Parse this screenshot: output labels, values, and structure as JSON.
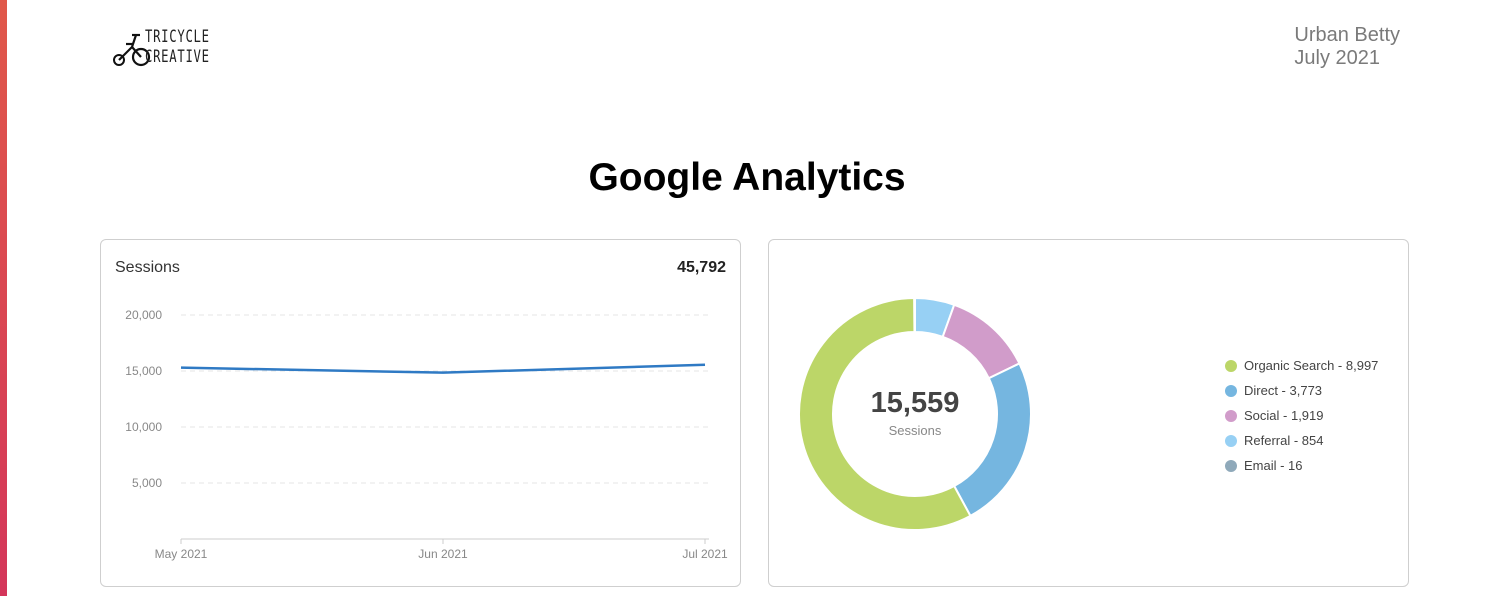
{
  "header": {
    "logo_line1": "TRICYCLE",
    "logo_line2": "CREATIVE",
    "client_name": "Urban Betty",
    "report_period": "July 2021"
  },
  "page_title": "Google Analytics",
  "sessions_card": {
    "title": "Sessions",
    "total": "45,792"
  },
  "traffic_card": {
    "center_value": "15,559",
    "center_label": "Sessions"
  },
  "chart_data": [
    {
      "type": "line",
      "title": "Sessions",
      "x": [
        "May 2021",
        "Jun 2021",
        "Jul 2021"
      ],
      "y_ticks": [
        "5,000",
        "10,000",
        "15,000",
        "20,000"
      ],
      "ylim": [
        0,
        20000
      ],
      "grid": true,
      "series": [
        {
          "values": [
            15300,
            14850,
            15560
          ],
          "color": "#2f7ac4"
        }
      ]
    },
    {
      "type": "pie",
      "donut": true,
      "legend_position": "right",
      "slices": [
        {
          "label": "Organic Search - 8,997",
          "name": "Organic Search",
          "value": 8997,
          "color": "#bcd668"
        },
        {
          "label": "Direct - 3,773",
          "name": "Direct",
          "value": 3773,
          "color": "#75b6e0"
        },
        {
          "label": "Social - 1,919",
          "name": "Social",
          "value": 1919,
          "color": "#d19cca"
        },
        {
          "label": "Referral - 854",
          "name": "Referral",
          "value": 854,
          "color": "#97d0f4"
        },
        {
          "label": "Email - 16",
          "name": "Email",
          "value": 16,
          "color": "#8fa9ba"
        }
      ]
    }
  ]
}
